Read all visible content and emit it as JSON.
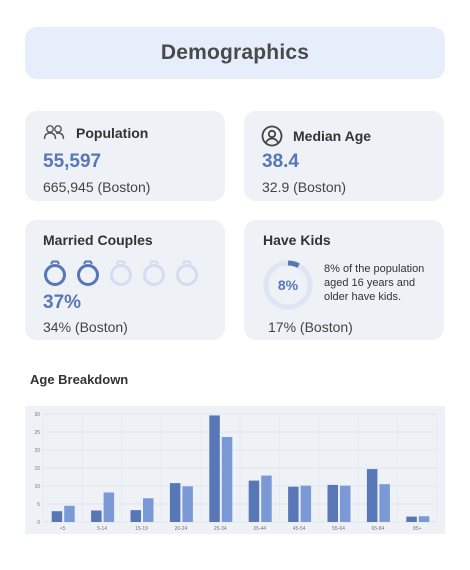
{
  "header": {
    "title": "Demographics"
  },
  "population": {
    "title": "Population",
    "value": "55,597",
    "comparison": "665,945 (Boston)",
    "icon": "people-icon"
  },
  "median_age": {
    "title": "Median Age",
    "value": "38.4",
    "comparison": "32.9 (Boston)",
    "icon": "user-circle-icon"
  },
  "married": {
    "title": "Married Couples",
    "value": "37%",
    "comparison": "34% (Boston)",
    "rings_total": 5,
    "rings_filled": 2,
    "icon": "ring-icon"
  },
  "kids": {
    "title": "Have Kids",
    "value": "8%",
    "value_fraction": 0.08,
    "description": "8% of the population aged 16 years and older have kids.",
    "comparison": "17% (Boston)"
  },
  "age_breakdown": {
    "title": "Age Breakdown"
  },
  "colors": {
    "accent": "#5877b7",
    "bar_dark": "#5877b7",
    "bar_light": "#7a99d6",
    "card_bg": "#eef1f6",
    "header_bg": "#e6eefc"
  },
  "chart_data": {
    "type": "bar",
    "categories": [
      "<5",
      "5-14",
      "15-19",
      "20-24",
      "25-34",
      "35-44",
      "45-54",
      "55-64",
      "65-84",
      "85+"
    ],
    "series": [
      {
        "values": [
          3,
          3.2,
          3.3,
          10.8,
          29.6,
          11.5,
          9.8,
          10.3,
          14.7,
          1.5
        ]
      },
      {
        "values": [
          4.5,
          8.2,
          6.6,
          9.9,
          23.6,
          12.9,
          10.1,
          10.1,
          10.5,
          1.6
        ]
      }
    ],
    "yticks": [
      "0",
      "5",
      "10",
      "15",
      "20",
      "25",
      "30"
    ],
    "ylim": [
      0,
      30
    ],
    "grid": true
  }
}
